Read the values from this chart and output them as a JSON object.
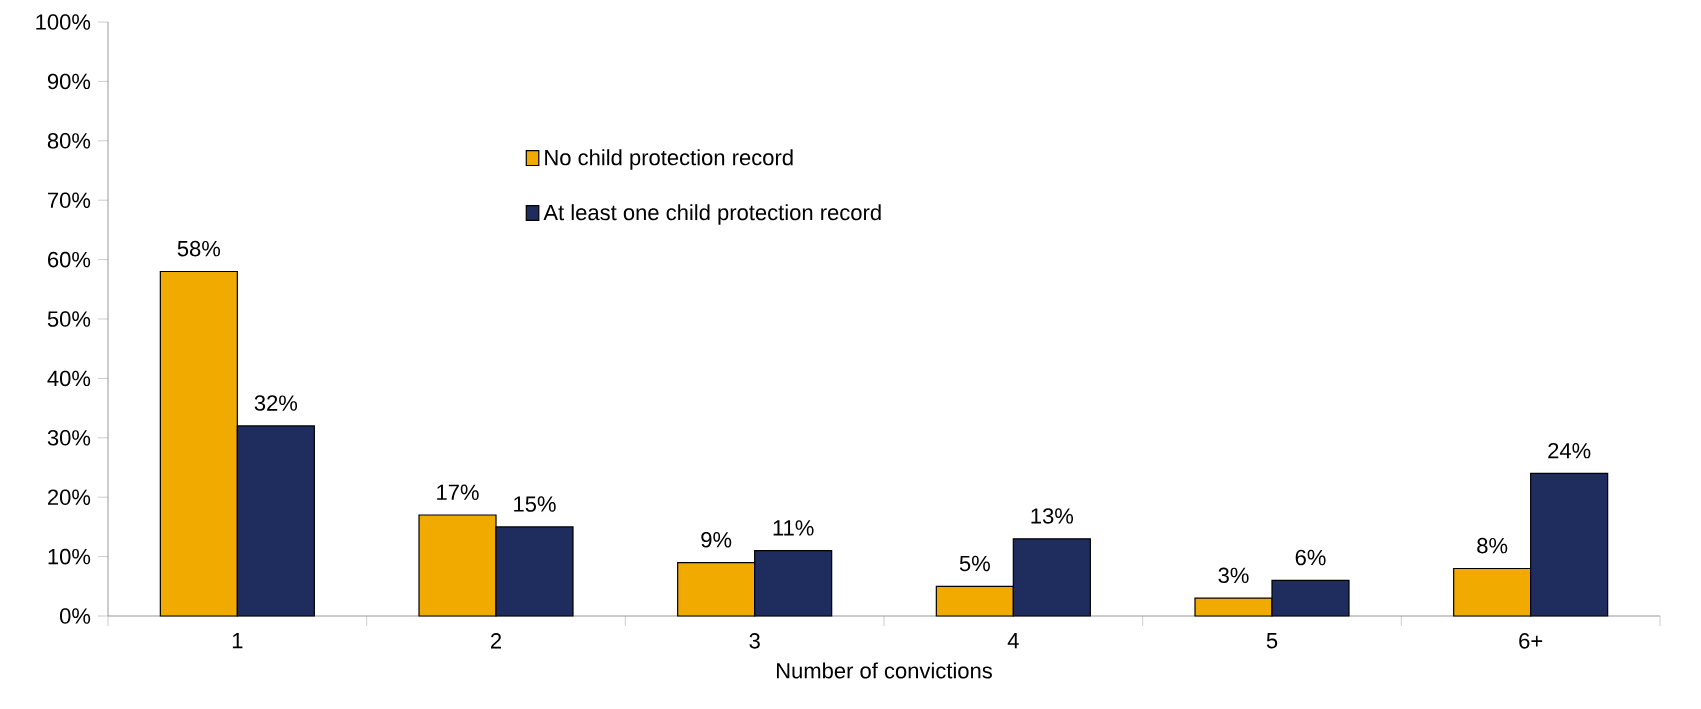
{
  "chart_data": {
    "type": "bar",
    "xlabel": "Number of convictions",
    "categories": [
      "1",
      "2",
      "3",
      "4",
      "5",
      "6+"
    ],
    "series": [
      {
        "name": "No child protection record",
        "color": "#f0aa00",
        "values": [
          58,
          17,
          9,
          5,
          3,
          8
        ],
        "value_labels": [
          "58%",
          "17%",
          "9%",
          "5%",
          "3%",
          "8%"
        ]
      },
      {
        "name": "At least one child protection record",
        "color": "#1f2d5e",
        "values": [
          32,
          15,
          11,
          13,
          6,
          24
        ],
        "value_labels": [
          "32%",
          "15%",
          "11%",
          "13%",
          "6%",
          "24%"
        ]
      }
    ],
    "ylim": [
      0,
      100
    ],
    "yticks": [
      {
        "value": 0,
        "label": "0%"
      },
      {
        "value": 10,
        "label": "10%"
      },
      {
        "value": 20,
        "label": "20%"
      },
      {
        "value": 30,
        "label": "30%"
      },
      {
        "value": 40,
        "label": "40%"
      },
      {
        "value": 50,
        "label": "50%"
      },
      {
        "value": 60,
        "label": "60%"
      },
      {
        "value": 70,
        "label": "70%"
      },
      {
        "value": 80,
        "label": "80%"
      },
      {
        "value": 90,
        "label": "90%"
      },
      {
        "value": 100,
        "label": "100%"
      }
    ],
    "grid": false,
    "legend": "top"
  }
}
